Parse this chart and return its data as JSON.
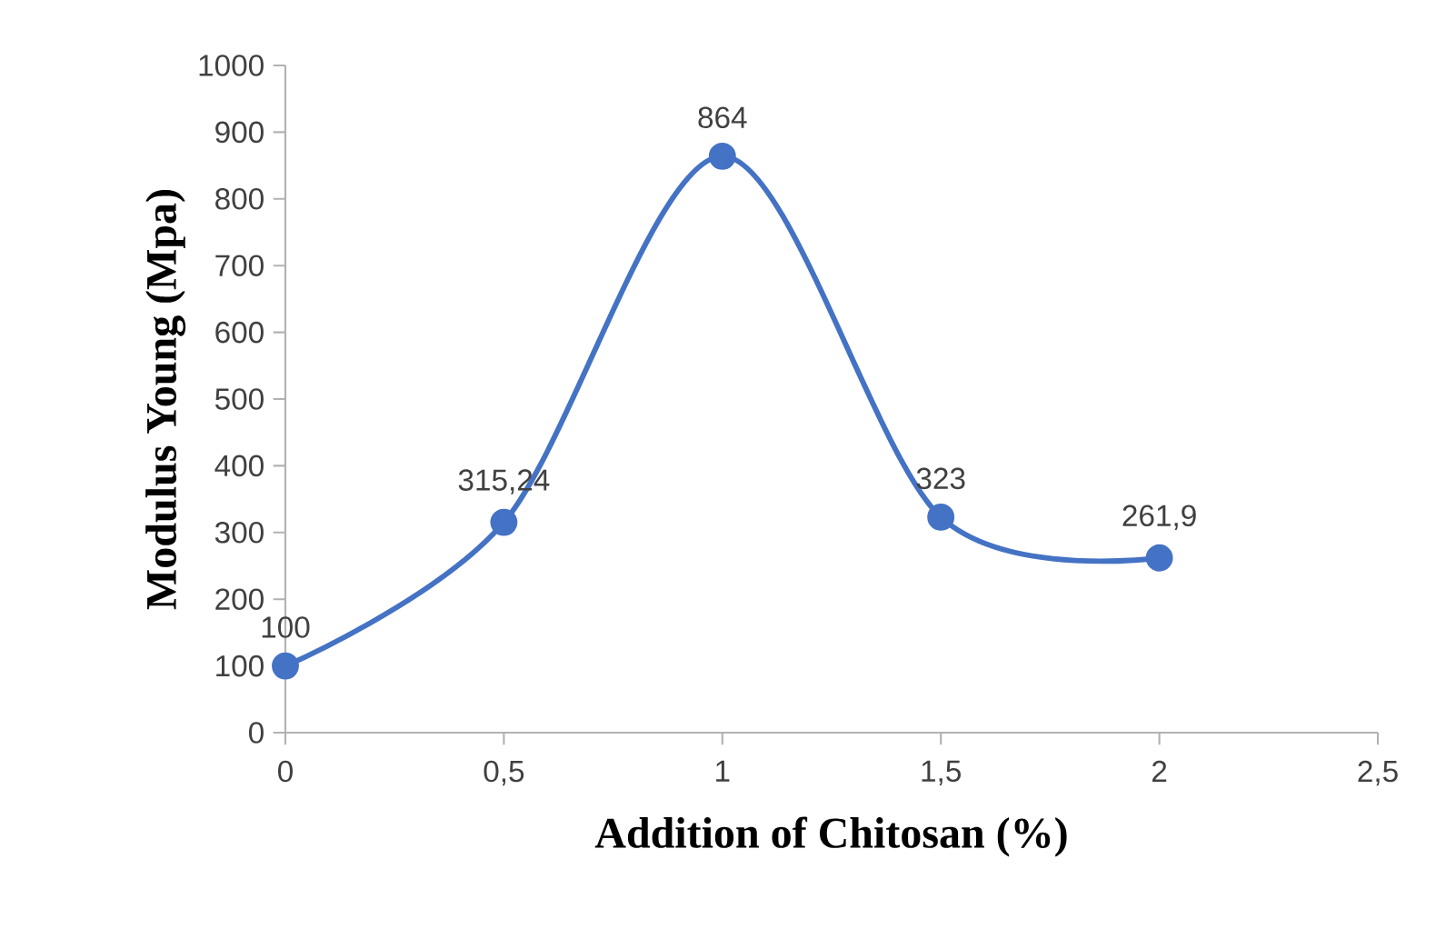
{
  "chart_data": {
    "type": "line",
    "xlabel": "Addition of Chitosan (%)",
    "ylabel": "Modulus Young (Mpa)",
    "x": [
      0,
      0.5,
      1,
      1.5,
      2
    ],
    "series": [
      {
        "color": "#4472c4",
        "values": [
          100,
          315.24,
          864,
          323,
          261.9
        ],
        "value_labels": [
          "100",
          "315,24",
          "864",
          "323",
          "261,9"
        ]
      }
    ],
    "xlim": [
      0,
      2.5
    ],
    "xticks": [
      0,
      {
        "value": 0.5,
        "label": "0,5"
      },
      1,
      {
        "value": 1.5,
        "label": "1,5"
      },
      2,
      {
        "value": 2.5,
        "label": "2,5"
      }
    ],
    "ylim": [
      0,
      1000
    ],
    "yticks": [
      0,
      100,
      200,
      300,
      400,
      500,
      600,
      700,
      800,
      900,
      1000
    ],
    "marker": "circle",
    "line_style": "solid"
  }
}
